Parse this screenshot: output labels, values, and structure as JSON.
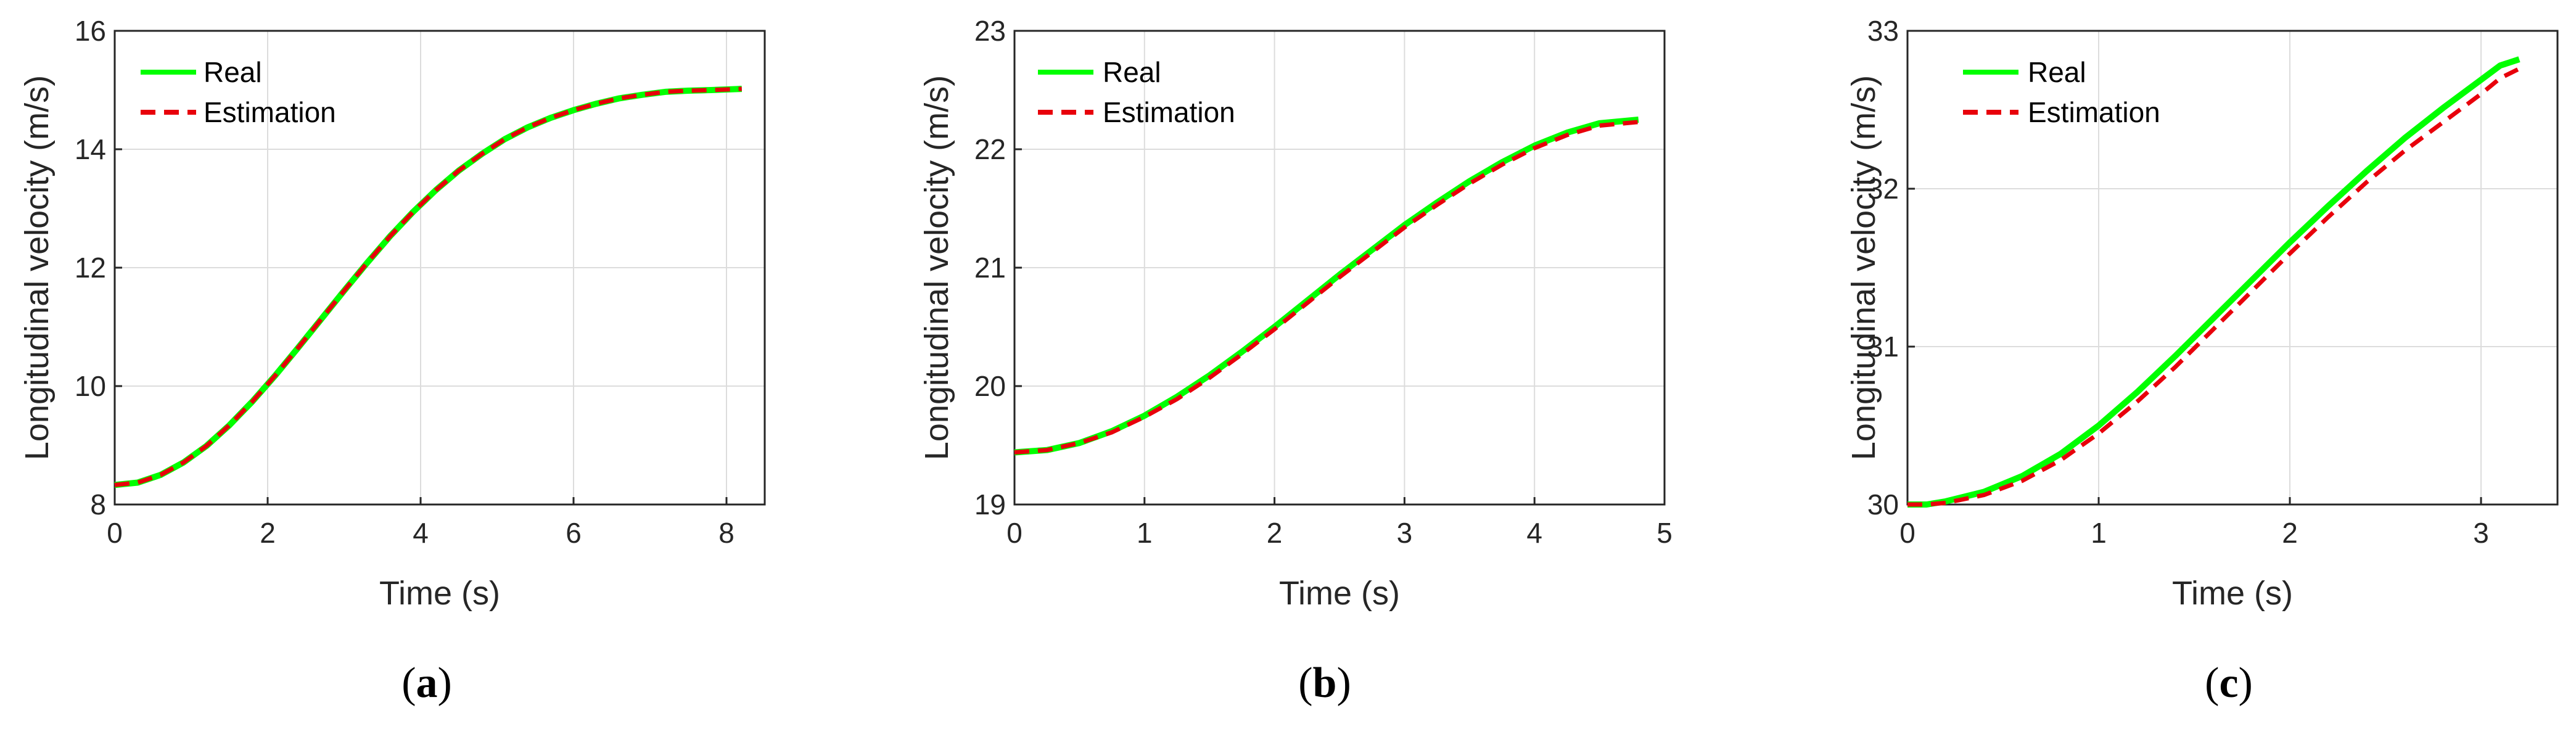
{
  "colors": {
    "real": "#00ff00",
    "estimation": "#e8000b",
    "axis": "#262626",
    "grid": "#dcdcdc"
  },
  "chart_data": [
    {
      "type": "line",
      "caption_letter": "a",
      "xlabel": "Time (s)",
      "ylabel": "Longitudinal velocity (m/s)",
      "xlim": [
        0,
        8.5
      ],
      "ylim": [
        8,
        16
      ],
      "xticks": [
        0,
        2,
        4,
        6,
        8
      ],
      "yticks": [
        8,
        10,
        12,
        14,
        16
      ],
      "grid": true,
      "legend_position": "top-left",
      "series": [
        {
          "name": "Real",
          "style": "solid",
          "color": "#00ff00",
          "x": [
            0,
            0.3,
            0.6,
            0.9,
            1.2,
            1.5,
            1.8,
            2.1,
            2.4,
            2.7,
            3.0,
            3.3,
            3.6,
            3.9,
            4.2,
            4.5,
            4.8,
            5.1,
            5.4,
            5.7,
            6.0,
            6.3,
            6.6,
            6.9,
            7.2,
            7.5,
            7.8,
            8.2
          ],
          "y": [
            8.33,
            8.37,
            8.5,
            8.71,
            8.99,
            9.34,
            9.74,
            10.18,
            10.65,
            11.13,
            11.61,
            12.08,
            12.53,
            12.94,
            13.31,
            13.64,
            13.92,
            14.17,
            14.37,
            14.53,
            14.66,
            14.77,
            14.86,
            14.92,
            14.97,
            14.99,
            15.0,
            15.02
          ]
        },
        {
          "name": "Estimation",
          "style": "dashed",
          "color": "#e8000b",
          "x": [
            0,
            0.3,
            0.6,
            0.9,
            1.2,
            1.5,
            1.8,
            2.1,
            2.4,
            2.7,
            3.0,
            3.3,
            3.6,
            3.9,
            4.2,
            4.5,
            4.8,
            5.1,
            5.4,
            5.7,
            6.0,
            6.3,
            6.6,
            6.9,
            7.2,
            7.5,
            7.8,
            8.2
          ],
          "y": [
            8.33,
            8.37,
            8.5,
            8.71,
            8.99,
            9.34,
            9.74,
            10.18,
            10.65,
            11.13,
            11.61,
            12.08,
            12.53,
            12.94,
            13.31,
            13.64,
            13.92,
            14.17,
            14.37,
            14.53,
            14.66,
            14.77,
            14.86,
            14.92,
            14.97,
            14.99,
            15.0,
            15.02
          ]
        }
      ]
    },
    {
      "type": "line",
      "caption_letter": "b",
      "xlabel": "Time (s)",
      "ylabel": "Longitudinal velocity (m/s)",
      "xlim": [
        0,
        5
      ],
      "ylim": [
        19,
        23
      ],
      "xticks": [
        0,
        1,
        2,
        3,
        4,
        5
      ],
      "yticks": [
        19,
        20,
        21,
        22,
        23
      ],
      "grid": true,
      "legend_position": "top-left",
      "series": [
        {
          "name": "Real",
          "style": "solid",
          "color": "#00ff00",
          "x": [
            0,
            0.25,
            0.5,
            0.75,
            1.0,
            1.25,
            1.5,
            1.75,
            2.0,
            2.25,
            2.5,
            2.75,
            3.0,
            3.25,
            3.5,
            3.75,
            4.0,
            4.25,
            4.5,
            4.8
          ],
          "y": [
            19.44,
            19.46,
            19.52,
            19.62,
            19.75,
            19.91,
            20.09,
            20.29,
            20.5,
            20.72,
            20.94,
            21.15,
            21.36,
            21.55,
            21.73,
            21.89,
            22.03,
            22.14,
            22.22,
            22.25
          ]
        },
        {
          "name": "Estimation",
          "style": "dashed",
          "color": "#e8000b",
          "x": [
            0,
            0.25,
            0.5,
            0.75,
            1.0,
            1.25,
            1.5,
            1.75,
            2.0,
            2.25,
            2.5,
            2.75,
            3.0,
            3.25,
            3.5,
            3.75,
            4.0,
            4.25,
            4.5,
            4.8
          ],
          "y": [
            19.44,
            19.46,
            19.52,
            19.61,
            19.74,
            19.89,
            20.07,
            20.27,
            20.48,
            20.7,
            20.92,
            21.13,
            21.34,
            21.53,
            21.71,
            21.87,
            22.01,
            22.12,
            22.2,
            22.23
          ]
        }
      ]
    },
    {
      "type": "line",
      "caption_letter": "c",
      "xlabel": "Time (s)",
      "ylabel": "Longitudinal velocity (m/s)",
      "xlim": [
        0,
        3.4
      ],
      "ylim": [
        30,
        33
      ],
      "xticks": [
        0,
        1,
        2,
        3
      ],
      "yticks": [
        30,
        31,
        32,
        33
      ],
      "grid": true,
      "legend_position": "top-left",
      "series": [
        {
          "name": "Real",
          "style": "solid",
          "color": "#00ff00",
          "x": [
            0,
            0.1,
            0.2,
            0.4,
            0.6,
            0.8,
            1.0,
            1.2,
            1.4,
            1.6,
            1.8,
            2.0,
            2.2,
            2.4,
            2.6,
            2.8,
            3.0,
            3.1,
            3.2
          ],
          "y": [
            30.0,
            30.0,
            30.02,
            30.08,
            30.18,
            30.32,
            30.5,
            30.71,
            30.94,
            31.18,
            31.42,
            31.66,
            31.89,
            32.11,
            32.32,
            32.51,
            32.69,
            32.78,
            32.82
          ]
        },
        {
          "name": "Estimation",
          "style": "dashed",
          "color": "#e8000b",
          "x": [
            0,
            0.1,
            0.2,
            0.4,
            0.6,
            0.8,
            1.0,
            1.2,
            1.4,
            1.6,
            1.8,
            2.0,
            2.2,
            2.4,
            2.6,
            2.8,
            3.0,
            3.1,
            3.2
          ],
          "y": [
            30.0,
            30.0,
            30.01,
            30.06,
            30.15,
            30.28,
            30.45,
            30.65,
            30.87,
            31.11,
            31.35,
            31.59,
            31.82,
            32.04,
            32.24,
            32.42,
            32.6,
            32.7,
            32.76
          ]
        }
      ]
    }
  ]
}
